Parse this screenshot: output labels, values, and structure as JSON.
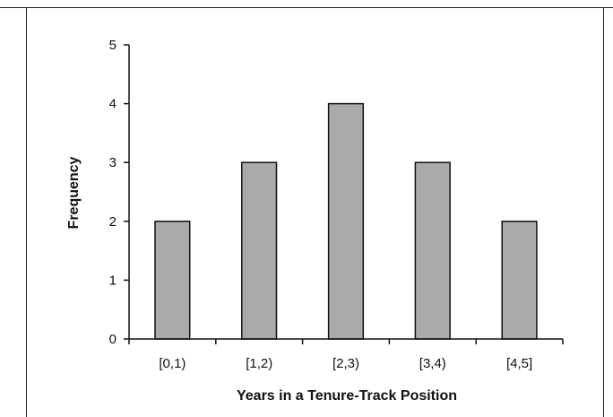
{
  "chart_data": {
    "type": "bar",
    "categories": [
      "[0,1)",
      "[1,2)",
      "[2,3)",
      "[3,4)",
      "[4,5]"
    ],
    "values": [
      2,
      3,
      4,
      3,
      2
    ],
    "title": "",
    "xlabel": "Years in a Tenure-Track Position",
    "ylabel": "Frequency",
    "ylim": [
      0,
      5
    ],
    "yticks": [
      0,
      1,
      2,
      3,
      4,
      5
    ],
    "grid": false,
    "legend": "none",
    "bar_color": "#aaaaaa",
    "edge_color": "#111111"
  }
}
